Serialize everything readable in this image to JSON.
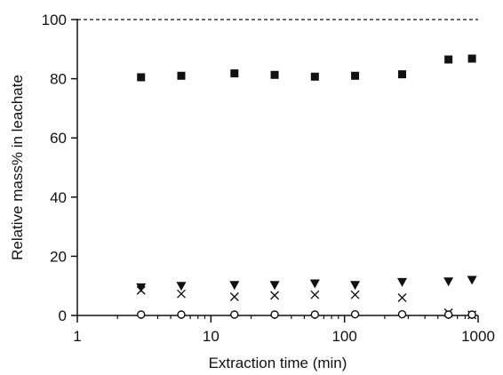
{
  "chart_data": {
    "type": "scatter",
    "title": "",
    "xlabel": "Extraction time (min)",
    "ylabel": "Relative mass% in leachate",
    "x_scale": "log",
    "xlim": [
      1,
      1000
    ],
    "ylim": [
      0,
      100
    ],
    "x_ticks": [
      1,
      10,
      100,
      1000
    ],
    "x_tick_labels": [
      "1",
      "10",
      "100",
      "1000"
    ],
    "y_ticks": [
      0,
      20,
      40,
      60,
      80,
      100
    ],
    "y_tick_labels": [
      "0",
      "20",
      "40",
      "60",
      "80",
      "100"
    ],
    "grid": false,
    "reference_line": {
      "y": 100,
      "style": "dashed"
    },
    "series": [
      {
        "marker": "filled-square",
        "x": [
          3,
          6,
          15,
          30,
          60,
          120,
          270,
          600,
          900
        ],
        "y": [
          80.5,
          81.0,
          81.8,
          81.3,
          80.7,
          81.0,
          81.5,
          86.5,
          86.8
        ]
      },
      {
        "marker": "filled-triangle-down",
        "x": [
          3,
          6,
          15,
          30,
          60,
          120,
          270,
          600,
          900
        ],
        "y": [
          9.5,
          10.0,
          10.3,
          10.3,
          10.8,
          10.3,
          11.3,
          11.5,
          12.0
        ]
      },
      {
        "marker": "cross",
        "x": [
          3,
          6,
          15,
          30,
          60,
          120,
          270,
          600,
          900
        ],
        "y": [
          8.5,
          7.3,
          6.3,
          6.8,
          7.0,
          7.0,
          6.0,
          0.9,
          0.2
        ]
      },
      {
        "marker": "open-circle",
        "x": [
          3,
          6,
          15,
          30,
          60,
          120,
          270,
          600,
          900
        ],
        "y": [
          0.3,
          0.3,
          0.3,
          0.3,
          0.3,
          0.4,
          0.4,
          0.3,
          0.3
        ]
      }
    ]
  }
}
